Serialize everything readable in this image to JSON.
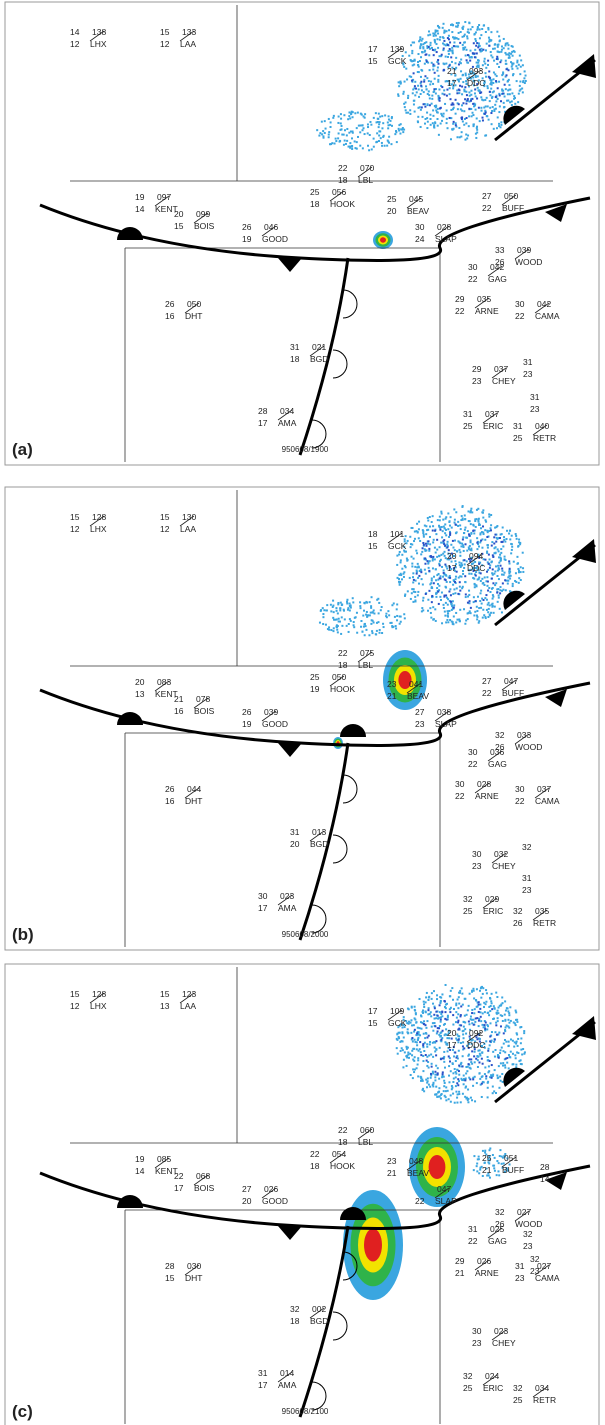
{
  "panels": [
    {
      "label": "(a)",
      "timestamp": "950608/1900",
      "stations": [
        {
          "temp": "14",
          "code": "138",
          "dew": "12",
          "id": "LHX"
        },
        {
          "temp": "15",
          "code": "133",
          "dew": "12",
          "id": "LAA"
        },
        {
          "temp": "17",
          "code": "139",
          "dew": "15",
          "id": "GCK"
        },
        {
          "temp": "21",
          "code": "093",
          "dew": "17",
          "id": "DDC"
        },
        {
          "temp": "22",
          "code": "070",
          "dew": "18",
          "id": "LBL"
        },
        {
          "temp": "19",
          "code": "097",
          "dew": "14",
          "id": "KENT"
        },
        {
          "temp": "25",
          "code": "056",
          "dew": "18",
          "id": "HOOK"
        },
        {
          "temp": "25",
          "code": "045",
          "dew": "20",
          "id": "BEAV"
        },
        {
          "temp": "27",
          "code": "050",
          "dew": "22",
          "id": "BUFF"
        },
        {
          "temp": "20",
          "code": "099",
          "dew": "15",
          "id": "BOIS"
        },
        {
          "temp": "26",
          "code": "046",
          "dew": "19",
          "id": "GOOD"
        },
        {
          "temp": "30",
          "code": "028",
          "dew": "24",
          "id": "SLAP"
        },
        {
          "temp": "33",
          "code": "039",
          "dew": "26",
          "id": "WOOD"
        },
        {
          "temp": "30",
          "code": "042",
          "dew": "22",
          "id": "GAG"
        },
        {
          "temp": "29",
          "code": "035",
          "dew": "22",
          "id": "ARNE"
        },
        {
          "temp": "30",
          "code": "042",
          "dew": "22",
          "id": "CAMA"
        },
        {
          "temp": "26",
          "code": "050",
          "dew": "16",
          "id": "DHT"
        },
        {
          "temp": "31",
          "code": "021",
          "dew": "18",
          "id": "BGD"
        },
        {
          "temp": "29",
          "code": "037",
          "dew": "23",
          "id": "CHEY"
        },
        {
          "temp": "31",
          "code": "037",
          "dew": "25",
          "id": "ERIC"
        },
        {
          "temp": "31",
          "code": "040",
          "dew": "25",
          "id": "RETR"
        },
        {
          "temp": "28",
          "code": "034",
          "dew": "17",
          "id": "AMA"
        }
      ],
      "partial": [
        {
          "temp": "31",
          "dew": "23"
        },
        {
          "temp": "31",
          "dew": "23"
        }
      ]
    },
    {
      "label": "(b)",
      "timestamp": "950608/2000",
      "stations": [
        {
          "temp": "15",
          "code": "128",
          "dew": "12",
          "id": "LHX"
        },
        {
          "temp": "15",
          "code": "130",
          "dew": "12",
          "id": "LAA"
        },
        {
          "temp": "18",
          "code": "101",
          "dew": "15",
          "id": "GCK"
        },
        {
          "temp": "20",
          "code": "094",
          "dew": "17",
          "id": "DDC"
        },
        {
          "temp": "22",
          "code": "075",
          "dew": "18",
          "id": "LBL"
        },
        {
          "temp": "20",
          "code": "083",
          "dew": "13",
          "id": "KENT"
        },
        {
          "temp": "25",
          "code": "050",
          "dew": "19",
          "id": "HOOK"
        },
        {
          "temp": "23",
          "code": "041",
          "dew": "21",
          "id": "BEAV"
        },
        {
          "temp": "27",
          "code": "047",
          "dew": "22",
          "id": "BUFF"
        },
        {
          "temp": "21",
          "code": "078",
          "dew": "16",
          "id": "BOIS"
        },
        {
          "temp": "26",
          "code": "039",
          "dew": "19",
          "id": "GOOD"
        },
        {
          "temp": "27",
          "code": "038",
          "dew": "23",
          "id": "SLAP"
        },
        {
          "temp": "32",
          "code": "033",
          "dew": "26",
          "id": "WOOD"
        },
        {
          "temp": "30",
          "code": "036",
          "dew": "22",
          "id": "GAG"
        },
        {
          "temp": "30",
          "code": "028",
          "dew": "22",
          "id": "ARNE"
        },
        {
          "temp": "30",
          "code": "037",
          "dew": "22",
          "id": "CAMA"
        },
        {
          "temp": "26",
          "code": "044",
          "dew": "16",
          "id": "DHT"
        },
        {
          "temp": "31",
          "code": "013",
          "dew": "20",
          "id": "BGD"
        },
        {
          "temp": "30",
          "code": "032",
          "dew": "23",
          "id": "CHEY"
        },
        {
          "temp": "32",
          "code": "029",
          "dew": "25",
          "id": "ERIC"
        },
        {
          "temp": "32",
          "code": "035",
          "dew": "26",
          "id": "RETR"
        },
        {
          "temp": "30",
          "code": "023",
          "dew": "17",
          "id": "AMA"
        }
      ],
      "partial": [
        {
          "temp": "32"
        },
        {
          "temp": "31",
          "dew": "23"
        }
      ]
    },
    {
      "label": "(c)",
      "timestamp": "950608/2100",
      "stations": [
        {
          "temp": "15",
          "code": "128",
          "dew": "12",
          "id": "LHX"
        },
        {
          "temp": "15",
          "code": "123",
          "dew": "13",
          "id": "LAA"
        },
        {
          "temp": "17",
          "code": "109",
          "dew": "15",
          "id": "GCK"
        },
        {
          "temp": "20",
          "code": "092",
          "dew": "17",
          "id": "DDC"
        },
        {
          "temp": "22",
          "code": "060",
          "dew": "18",
          "id": "LBL"
        },
        {
          "temp": "19",
          "code": "085",
          "dew": "14",
          "id": "KENT"
        },
        {
          "temp": "22",
          "code": "054",
          "dew": "18",
          "id": "HOOK"
        },
        {
          "temp": "23",
          "code": "048",
          "dew": "21",
          "id": "BEAV"
        },
        {
          "temp": "25",
          "code": "051",
          "dew": "21",
          "id": "BUFF"
        },
        {
          "temp": "22",
          "code": "068",
          "dew": "17",
          "id": "BOIS"
        },
        {
          "temp": "27",
          "code": "026",
          "dew": "20",
          "id": "GOOD"
        },
        {
          "temp": "",
          "code": "047",
          "dew": "22",
          "id": "SLAP"
        },
        {
          "temp": "32",
          "code": "027",
          "dew": "26",
          "id": "WOOD"
        },
        {
          "temp": "31",
          "code": "025",
          "dew": "22",
          "id": "GAG"
        },
        {
          "temp": "29",
          "code": "026",
          "dew": "21",
          "id": "ARNE"
        },
        {
          "temp": "31",
          "code": "027",
          "dew": "23",
          "id": "CAMA"
        },
        {
          "temp": "28",
          "code": "030",
          "dew": "15",
          "id": "DHT"
        },
        {
          "temp": "32",
          "code": "002",
          "dew": "18",
          "id": "BGD"
        },
        {
          "temp": "30",
          "code": "023",
          "dew": "23",
          "id": "CHEY"
        },
        {
          "temp": "32",
          "code": "024",
          "dew": "25",
          "id": "ERIC"
        },
        {
          "temp": "32",
          "code": "034",
          "dew": "25",
          "id": "RETR"
        },
        {
          "temp": "31",
          "code": "014",
          "dew": "17",
          "id": "AMA"
        }
      ],
      "partial": [
        {
          "temp": "32",
          "dew": "23"
        },
        {
          "temp": "32",
          "dew": "23"
        },
        {
          "temp": "28",
          "dew": "14"
        }
      ]
    }
  ]
}
